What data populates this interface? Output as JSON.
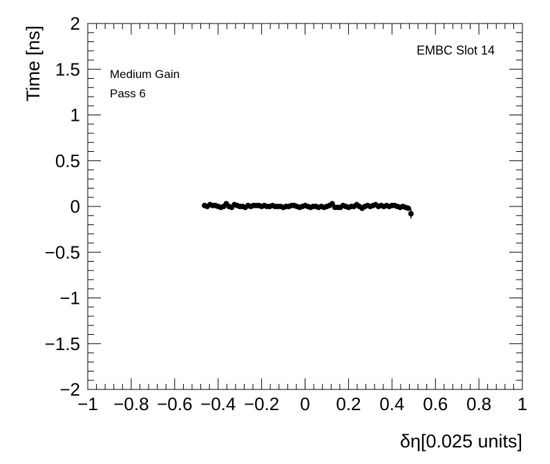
{
  "chart_data": {
    "type": "scatter",
    "title": "",
    "xlabel": "δη[0.025 units]",
    "ylabel": "Time [ns]",
    "xlim": [
      -1,
      1
    ],
    "ylim": [
      -2,
      2
    ],
    "x_ticks": [
      -1,
      -0.8,
      -0.6,
      -0.4,
      -0.2,
      0,
      0.2,
      0.4,
      0.6,
      0.8,
      1
    ],
    "x_tick_labels": [
      "−1",
      "−0.8",
      "−0.6",
      "−0.4",
      "−0.2",
      "0",
      "0.2",
      "0.4",
      "0.6",
      "0.8",
      "1"
    ],
    "y_ticks": [
      -2,
      -1.5,
      -1,
      -0.5,
      0,
      0.5,
      1,
      1.5,
      2
    ],
    "y_tick_labels": [
      "−2",
      "−1.5",
      "−1",
      "−0.5",
      "0",
      "0.5",
      "1",
      "1.5",
      "2"
    ],
    "grid": false,
    "annotations": {
      "gain": "Medium Gain",
      "pass": "Pass 6",
      "slot": "EMBC Slot 14"
    },
    "series": [
      {
        "marker": "circle",
        "color": "#000000",
        "x": [
          -0.4625,
          -0.45,
          -0.4375,
          -0.425,
          -0.4125,
          -0.4,
          -0.3875,
          -0.375,
          -0.3625,
          -0.35,
          -0.3375,
          -0.325,
          -0.3125,
          -0.3,
          -0.2875,
          -0.275,
          -0.2625,
          -0.25,
          -0.2375,
          -0.225,
          -0.2125,
          -0.2,
          -0.1875,
          -0.175,
          -0.1625,
          -0.15,
          -0.1375,
          -0.125,
          -0.1125,
          -0.1,
          -0.0875,
          -0.075,
          -0.0625,
          -0.05,
          -0.0375,
          -0.025,
          -0.0125,
          0,
          0.0125,
          0.025,
          0.0375,
          0.05,
          0.0625,
          0.075,
          0.0875,
          0.1,
          0.1125,
          0.125,
          0.1375,
          0.15,
          0.1625,
          0.175,
          0.1875,
          0.2,
          0.2125,
          0.225,
          0.2375,
          0.25,
          0.2625,
          0.275,
          0.2875,
          0.3,
          0.3125,
          0.325,
          0.3375,
          0.35,
          0.3625,
          0.375,
          0.3875,
          0.4,
          0.4125,
          0.425,
          0.4375,
          0.45,
          0.4625,
          0.475,
          0.4875
        ],
        "y": [
          0.01,
          0,
          0.02,
          0.01,
          0.01,
          0,
          -0.01,
          0,
          0.03,
          0,
          -0.01,
          0.02,
          0.01,
          0,
          0,
          -0.01,
          0.01,
          0,
          0.01,
          0.01,
          0.01,
          0,
          0.01,
          0,
          0,
          0.01,
          0,
          0,
          0,
          -0.01,
          0,
          0,
          0.01,
          0.01,
          0,
          -0.01,
          0,
          0.01,
          0,
          -0.01,
          0,
          0,
          -0.01,
          0,
          -0.01,
          0,
          0.01,
          0.03,
          -0.01,
          -0.01,
          -0.01,
          0.01,
          0,
          -0.01,
          0,
          0,
          0.02,
          0,
          -0.02,
          0,
          0.01,
          0,
          0.01,
          0.02,
          0,
          0.01,
          0,
          0.01,
          0,
          0.01,
          0.01,
          0,
          -0.01,
          0,
          -0.01,
          -0.02,
          -0.08
        ]
      }
    ]
  }
}
